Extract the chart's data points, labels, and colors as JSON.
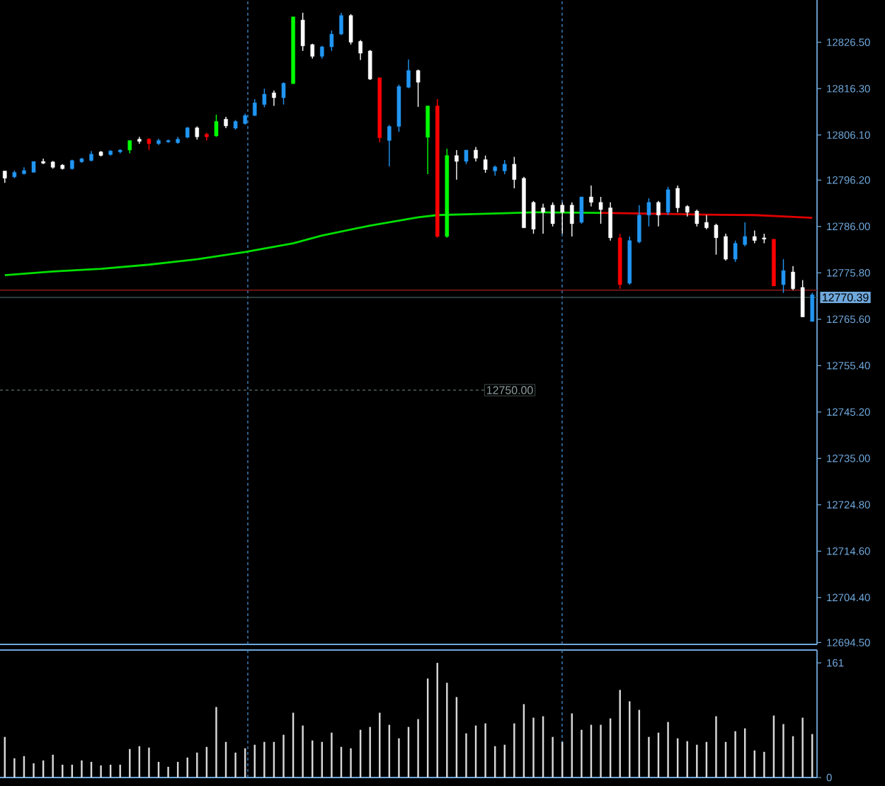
{
  "chart_data": [
    {
      "type": "candlestick",
      "categories": [
        null,
        null,
        null,
        null,
        null,
        null,
        null,
        null,
        null,
        null,
        null,
        null,
        null,
        null,
        null,
        null,
        null,
        null,
        null,
        null,
        null,
        null,
        null,
        null,
        null,
        null,
        null,
        null,
        null,
        null,
        null,
        null,
        null,
        null,
        null,
        null,
        null,
        null,
        null,
        null,
        null,
        null,
        null,
        null,
        null,
        null,
        null,
        null,
        null,
        null,
        null,
        null,
        null,
        null,
        null,
        null,
        null,
        null,
        null,
        null,
        null,
        null,
        null,
        null,
        null,
        null,
        null,
        null,
        null,
        null,
        null,
        null,
        null,
        null,
        null,
        null,
        null,
        null,
        null,
        null,
        null,
        null,
        null,
        null,
        null
      ],
      "ohlc": [
        [
          12798.2,
          12798.2,
          12795.6,
          12796.6
        ],
        [
          12796.9,
          12798.3,
          12796.6,
          12797.9
        ],
        [
          12797.6,
          12799.0,
          12797.4,
          12798.3
        ],
        [
          12797.9,
          12800.3,
          12797.9,
          12800.3
        ],
        [
          12800.3,
          12800.9,
          12799.7,
          12799.9
        ],
        [
          12800.2,
          12800.4,
          12798.7,
          12799.0
        ],
        [
          12799.5,
          12799.7,
          12798.5,
          12798.7
        ],
        [
          12798.7,
          12800.7,
          12798.5,
          12800.5
        ],
        [
          12800.2,
          12801.1,
          12800.0,
          12800.9
        ],
        [
          12800.5,
          12802.6,
          12800.3,
          12801.9
        ],
        [
          12802.4,
          12802.6,
          12801.4,
          12801.6
        ],
        [
          12801.8,
          12802.8,
          12801.6,
          12802.6
        ],
        [
          12802.4,
          12803.0,
          12802.1,
          12802.8
        ],
        [
          12802.8,
          12804.9,
          12802.1,
          12804.9
        ],
        [
          12805.2,
          12805.7,
          12804.2,
          12804.7
        ],
        [
          12805.2,
          12805.4,
          12802.8,
          12804.2
        ],
        [
          12804.2,
          12805.3,
          12803.9,
          12804.9
        ],
        [
          12804.6,
          12805.1,
          12804.4,
          12804.9
        ],
        [
          12804.4,
          12805.7,
          12804.2,
          12805.2
        ],
        [
          12805.6,
          12807.9,
          12805.4,
          12807.7
        ],
        [
          12807.7,
          12808.0,
          12805.1,
          12805.7
        ],
        [
          12806.3,
          12806.6,
          12804.9,
          12805.7
        ],
        [
          12805.9,
          12810.6,
          12805.7,
          12809.1
        ],
        [
          12809.6,
          12810.1,
          12807.6,
          12808.1
        ],
        [
          12807.6,
          12809.4,
          12807.3,
          12809.1
        ],
        [
          12808.6,
          12810.8,
          12808.4,
          12810.4
        ],
        [
          12810.4,
          12814.0,
          12810.3,
          12813.2
        ],
        [
          12812.8,
          12816.3,
          12812.2,
          12815.1
        ],
        [
          12815.4,
          12815.9,
          12812.5,
          12814.3
        ],
        [
          12814.3,
          12817.7,
          12812.8,
          12817.5
        ],
        [
          12817.4,
          12832.1,
          12817.4,
          12832.1
        ],
        [
          12831.4,
          12833.0,
          12824.6,
          12825.7
        ],
        [
          12826.0,
          12826.2,
          12822.9,
          12823.4
        ],
        [
          12823.4,
          12825.7,
          12822.9,
          12825.5
        ],
        [
          12825.5,
          12829.1,
          12824.6,
          12828.3
        ],
        [
          12828.3,
          12833.0,
          12828.1,
          12832.4
        ],
        [
          12832.4,
          12832.7,
          12826.0,
          12826.5
        ],
        [
          12826.7,
          12827.0,
          12822.6,
          12824.1
        ],
        [
          12824.6,
          12824.8,
          12818.2,
          12818.4
        ],
        [
          12818.7,
          12818.7,
          12804.5,
          12805.5
        ],
        [
          12804.9,
          12808.3,
          12799.2,
          12808.0
        ],
        [
          12808.0,
          12817.2,
          12806.8,
          12816.8
        ],
        [
          12816.6,
          12822.7,
          12816.4,
          12820.3
        ],
        [
          12820.3,
          12820.5,
          12812.3,
          12817.7
        ],
        [
          12805.6,
          12812.5,
          12797.5,
          12812.5
        ],
        [
          12812.5,
          12814.0,
          12783.5,
          12783.8
        ],
        [
          12783.8,
          12803.1,
          12783.5,
          12801.6
        ],
        [
          12801.6,
          12802.8,
          12796.3,
          12800.3
        ],
        [
          12800.3,
          12802.8,
          12799.7,
          12802.8
        ],
        [
          12802.8,
          12803.5,
          12800.3,
          12801.0
        ],
        [
          12800.7,
          12801.6,
          12797.8,
          12798.5
        ],
        [
          12798.2,
          12799.4,
          12797.2,
          12799.1
        ],
        [
          12798.2,
          12800.6,
          12797.5,
          12799.7
        ],
        [
          12799.7,
          12801.3,
          12794.4,
          12796.3
        ],
        [
          12796.6,
          12796.9,
          12785.7,
          12785.7
        ],
        [
          12791.3,
          12791.6,
          12784.4,
          12785.4
        ],
        [
          12790.1,
          12791.0,
          12784.4,
          12789.1
        ],
        [
          12790.7,
          12791.3,
          12786.0,
          12786.6
        ],
        [
          12790.7,
          12791.3,
          12784.4,
          12789.1
        ],
        [
          12790.7,
          12791.3,
          12783.8,
          12786.6
        ],
        [
          12786.9,
          12792.5,
          12786.6,
          12792.5
        ],
        [
          12792.5,
          12795.0,
          12790.4,
          12791.3
        ],
        [
          12791.3,
          12792.5,
          12786.6,
          12789.7
        ],
        [
          12790.1,
          12791.3,
          12782.9,
          12783.5
        ],
        [
          12783.5,
          12784.4,
          12772.3,
          12773.2
        ],
        [
          12773.5,
          12783.8,
          12773.2,
          12782.9
        ],
        [
          12782.6,
          12790.7,
          12782.3,
          12788.5
        ],
        [
          12788.5,
          12792.2,
          12786.0,
          12791.3
        ],
        [
          12791.3,
          12791.6,
          12786.0,
          12788.5
        ],
        [
          12789.1,
          12794.7,
          12788.5,
          12794.1
        ],
        [
          12794.4,
          12795.0,
          12789.1,
          12790.1
        ],
        [
          12790.4,
          12790.7,
          12788.2,
          12789.1
        ],
        [
          12789.4,
          12789.7,
          12786.0,
          12786.6
        ],
        [
          12786.9,
          12788.5,
          12785.4,
          12785.7
        ],
        [
          12786.3,
          12786.6,
          12779.8,
          12783.5
        ],
        [
          12783.8,
          12784.4,
          12778.5,
          12778.8
        ],
        [
          12778.8,
          12782.9,
          12778.2,
          12782.3
        ],
        [
          12782.0,
          12786.9,
          12781.6,
          12783.8
        ],
        [
          12783.8,
          12785.1,
          12782.3,
          12782.9
        ],
        [
          12783.5,
          12784.4,
          12782.3,
          12783.2
        ],
        [
          12783.2,
          12783.2,
          12772.9,
          12772.9
        ],
        [
          12773.2,
          12778.8,
          12771.4,
          12776.3
        ],
        [
          12776.0,
          12777.3,
          12772.0,
          12772.3
        ],
        [
          12772.6,
          12774.2,
          12766.1,
          12766.1
        ],
        [
          12765.1,
          12771.4,
          12765.1,
          12771.0
        ]
      ],
      "colors": [
        "#ffffff",
        "#2196f3",
        "#2196f3",
        "#2196f3",
        "#ffffff",
        "#ffffff",
        "#ffffff",
        "#2196f3",
        "#2196f3",
        "#2196f3",
        "#ffffff",
        "#2196f3",
        "#2196f3",
        "#00ff00",
        "#ffffff",
        "#ff0000",
        "#2196f3",
        "#2196f3",
        "#2196f3",
        "#2196f3",
        "#ffffff",
        "#ff0000",
        "#00ff00",
        "#ffffff",
        "#2196f3",
        "#2196f3",
        "#2196f3",
        "#2196f3",
        "#ffffff",
        "#2196f3",
        "#00ff00",
        "#ffffff",
        "#ffffff",
        "#2196f3",
        "#2196f3",
        "#2196f3",
        "#ffffff",
        "#ffffff",
        "#ffffff",
        "#ff0000",
        "#2196f3",
        "#2196f3",
        "#2196f3",
        "#ffffff",
        "#00ff00",
        "#ff0000",
        "#00ff00",
        "#ffffff",
        "#2196f3",
        "#ffffff",
        "#ffffff",
        "#2196f3",
        "#2196f3",
        "#ffffff",
        "#ffffff",
        "#ffffff",
        "#ffffff",
        "#ffffff",
        "#ffffff",
        "#ffffff",
        "#2196f3",
        "#ffffff",
        "#ffffff",
        "#ffffff",
        "#ff0000",
        "#2196f3",
        "#2196f3",
        "#2196f3",
        "#ffffff",
        "#2196f3",
        "#ffffff",
        "#ffffff",
        "#ffffff",
        "#ffffff",
        "#ffffff",
        "#ffffff",
        "#2196f3",
        "#2196f3",
        "#ffffff",
        "#ffffff",
        "#ff0000",
        "#2196f3",
        "#ffffff",
        "#ffffff",
        "#2196f3"
      ],
      "series": [
        {
          "type": "line",
          "color": "#00e000",
          "values": [
            12775.3,
            null,
            null,
            null,
            null,
            12776.1,
            null,
            null,
            null,
            null,
            12776.7,
            null,
            null,
            null,
            null,
            12777.6,
            null,
            null,
            null,
            null,
            12778.8,
            null,
            null,
            null,
            null,
            12780.4,
            null,
            null,
            null,
            null,
            12782.3,
            null,
            null,
            12784.0,
            null,
            null,
            null,
            null,
            12786.2,
            null,
            null,
            null,
            null,
            12788.0,
            null,
            12788.5,
            null,
            null,
            null,
            null,
            12788.8,
            null,
            null,
            null,
            null,
            12789.1,
            null,
            null,
            null,
            null,
            null,
            null,
            12789.0,
            null,
            null,
            null,
            null,
            null,
            null,
            null,
            null,
            null,
            null,
            null,
            null,
            null,
            null,
            null,
            null,
            null,
            null,
            null,
            null,
            null,
            null
          ]
        },
        {
          "type": "line",
          "color": "#e00000",
          "values": [
            null,
            null,
            null,
            null,
            null,
            null,
            null,
            null,
            null,
            null,
            null,
            null,
            null,
            null,
            null,
            null,
            null,
            null,
            null,
            null,
            null,
            null,
            null,
            null,
            null,
            null,
            null,
            null,
            null,
            null,
            null,
            null,
            null,
            null,
            null,
            null,
            null,
            null,
            null,
            null,
            null,
            null,
            null,
            null,
            null,
            null,
            null,
            null,
            null,
            null,
            null,
            null,
            null,
            null,
            null,
            null,
            null,
            null,
            null,
            null,
            null,
            null,
            12789.0,
            null,
            null,
            null,
            null,
            null,
            12788.8,
            null,
            null,
            null,
            null,
            12788.6,
            null,
            null,
            null,
            null,
            12788.5,
            null,
            null,
            12788.2,
            null,
            null,
            12787.9
          ]
        }
      ],
      "ylim": [
        12694.1,
        12835.8
      ],
      "yticks": [
        {
          "value": 12826.5,
          "label": "12826.50"
        },
        {
          "value": 12816.3,
          "label": "12816.30"
        },
        {
          "value": 12806.1,
          "label": "12806.10"
        },
        {
          "value": 12796.2,
          "label": "12796.20"
        },
        {
          "value": 12786.0,
          "label": "12786.00"
        },
        {
          "value": 12775.8,
          "label": "12775.80"
        },
        {
          "value": 12765.6,
          "label": "12765.60"
        },
        {
          "value": 12755.4,
          "label": "12755.40"
        },
        {
          "value": 12745.2,
          "label": "12745.20"
        },
        {
          "value": 12735.0,
          "label": "12735.00"
        },
        {
          "value": 12724.8,
          "label": "12724.80"
        },
        {
          "value": 12714.6,
          "label": "12714.60"
        },
        {
          "value": 12704.4,
          "label": "12704.40"
        },
        {
          "value": 12694.5,
          "label": "12694.50"
        }
      ],
      "tick_labels": "y",
      "ref_lines": [
        {
          "axis": "y",
          "value": 12772.0,
          "color": "#8b1a1a"
        },
        {
          "axis": "y",
          "value": 12770.39,
          "label": "12770.39",
          "color": "#3a5050"
        },
        {
          "axis": "y",
          "value": 12750.0,
          "label": "12750.00",
          "color": "#50605c",
          "line_style": "dashed"
        }
      ]
    },
    {
      "type": "bar",
      "categories": [
        null,
        null,
        null,
        null,
        null,
        null,
        null,
        null,
        null,
        null,
        null,
        null,
        null,
        null,
        null,
        null,
        null,
        null,
        null,
        null,
        null,
        null,
        null,
        null,
        null,
        null,
        null,
        null,
        null,
        null,
        null,
        null,
        null,
        null,
        null,
        null,
        null,
        null,
        null,
        null,
        null,
        null,
        null,
        null,
        null,
        null,
        null,
        null,
        null,
        null,
        null,
        null,
        null,
        null,
        null,
        null,
        null,
        null,
        null,
        null,
        null,
        null,
        null,
        null,
        null,
        null,
        null,
        null,
        null,
        null,
        null,
        null,
        null,
        null,
        null,
        null,
        null,
        null,
        null,
        null,
        null,
        null,
        null,
        null,
        null
      ],
      "values": [
        57,
        27,
        30,
        20,
        24,
        32,
        18,
        18,
        24,
        22,
        17,
        18,
        18,
        40,
        44,
        42,
        22,
        15,
        22,
        28,
        35,
        43,
        99,
        50,
        35,
        41,
        46,
        50,
        50,
        60,
        91,
        73,
        52,
        50,
        63,
        43,
        41,
        67,
        71,
        91,
        74,
        55,
        71,
        82,
        139,
        161,
        133,
        113,
        62,
        73,
        76,
        44,
        46,
        76,
        103,
        84,
        86,
        57,
        50,
        90,
        67,
        74,
        74,
        83,
        123,
        107,
        95,
        57,
        63,
        78,
        55,
        51,
        46,
        50,
        86,
        50,
        65,
        69,
        38,
        36,
        87,
        75,
        58,
        84,
        61
      ],
      "color": "#d8d8d8",
      "ylim": [
        0,
        179
      ],
      "yticks": [
        0,
        161
      ],
      "tick_labels": "y"
    }
  ]
}
